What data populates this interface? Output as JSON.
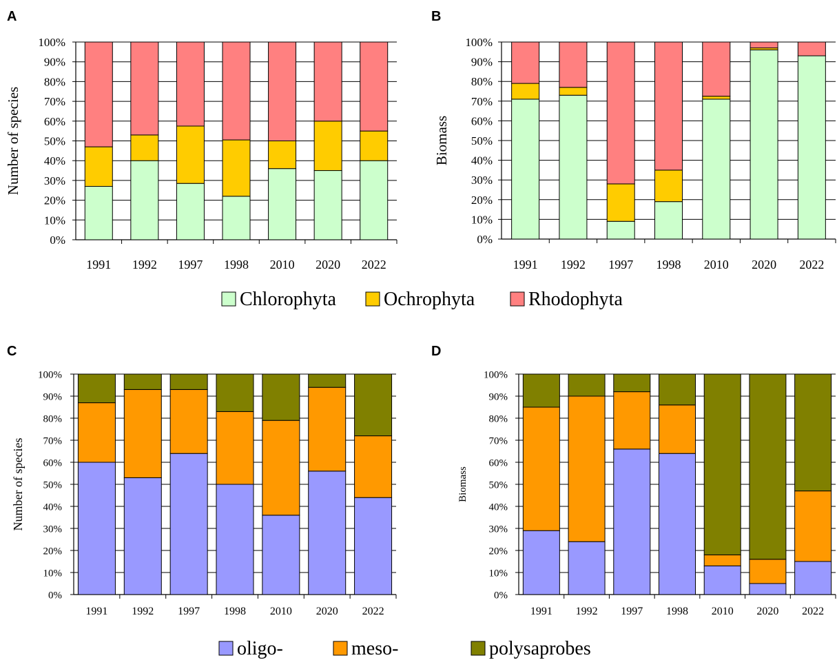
{
  "legend_top": {
    "items": [
      {
        "label": "Chlorophyta",
        "color": "#ccffcc"
      },
      {
        "label": "Ochrophyta",
        "color": "#ffcc00"
      },
      {
        "label": "Rhodophyta",
        "color": "#ff8080"
      }
    ]
  },
  "legend_bottom": {
    "items": [
      {
        "label": "oligo-",
        "color": "#9999ff"
      },
      {
        "label": "meso-",
        "color": "#ff9900"
      },
      {
        "label": "polysaprobes",
        "color": "#808000"
      }
    ]
  },
  "chart_data": [
    {
      "panel": "A",
      "type": "bar",
      "stacked": true,
      "ylabel": "Number of species",
      "ylim": [
        0,
        100
      ],
      "yticks": [
        "0%",
        "10%",
        "20%",
        "30%",
        "40%",
        "50%",
        "60%",
        "70%",
        "80%",
        "90%",
        "100%"
      ],
      "grid": true,
      "categories": [
        "1991",
        "1992",
        "1997",
        "1998",
        "2010",
        "2020",
        "2022"
      ],
      "series": [
        {
          "name": "Chlorophyta",
          "color": "#ccffcc",
          "values": [
            27,
            40,
            28.5,
            22,
            36,
            35,
            40
          ]
        },
        {
          "name": "Ochrophyta",
          "color": "#ffcc00",
          "values": [
            20,
            13,
            29,
            28.5,
            14,
            25,
            15
          ]
        },
        {
          "name": "Rhodophyta",
          "color": "#ff8080",
          "values": [
            53,
            47,
            42.5,
            49.5,
            50,
            40,
            45
          ]
        }
      ]
    },
    {
      "panel": "B",
      "type": "bar",
      "stacked": true,
      "ylabel": "Biomass",
      "ylim": [
        0,
        100
      ],
      "yticks": [
        "0%",
        "10%",
        "20%",
        "30%",
        "40%",
        "50%",
        "60%",
        "70%",
        "80%",
        "90%",
        "100%"
      ],
      "grid": true,
      "categories": [
        "1991",
        "1992",
        "1997",
        "1998",
        "2010",
        "2020",
        "2022"
      ],
      "series": [
        {
          "name": "Chlorophyta",
          "color": "#ccffcc",
          "values": [
            71,
            73,
            9,
            19,
            71,
            96,
            93
          ]
        },
        {
          "name": "Ochrophyta",
          "color": "#ffcc00",
          "values": [
            8,
            4,
            19,
            16,
            1.5,
            1,
            0
          ]
        },
        {
          "name": "Rhodophyta",
          "color": "#ff8080",
          "values": [
            21,
            23,
            72,
            65,
            27.5,
            3,
            7
          ]
        }
      ]
    },
    {
      "panel": "C",
      "type": "bar",
      "stacked": true,
      "ylabel": "Number of species",
      "ylim": [
        0,
        100
      ],
      "yticks": [
        "0%",
        "10%",
        "20%",
        "30%",
        "40%",
        "50%",
        "60%",
        "70%",
        "80%",
        "90%",
        "100%"
      ],
      "grid": true,
      "categories": [
        "1991",
        "1992",
        "1997",
        "1998",
        "2010",
        "2020",
        "2022"
      ],
      "series": [
        {
          "name": "oligo-",
          "color": "#9999ff",
          "values": [
            60,
            53,
            64,
            50,
            36,
            56,
            44
          ]
        },
        {
          "name": "meso-",
          "color": "#ff9900",
          "values": [
            27,
            40,
            29,
            33,
            43,
            38,
            28
          ]
        },
        {
          "name": "polysaprobes",
          "color": "#808000",
          "values": [
            13,
            7,
            7,
            17,
            21,
            6,
            28
          ]
        }
      ]
    },
    {
      "panel": "D",
      "type": "bar",
      "stacked": true,
      "ylabel": "Biomass",
      "ylim": [
        0,
        100
      ],
      "yticks": [
        "0%",
        "10%",
        "20%",
        "30%",
        "40%",
        "50%",
        "60%",
        "70%",
        "80%",
        "90%",
        "100%"
      ],
      "grid": true,
      "categories": [
        "1991",
        "1992",
        "1997",
        "1998",
        "2010",
        "2020",
        "2022"
      ],
      "series": [
        {
          "name": "oligo-",
          "color": "#9999ff",
          "values": [
            29,
            24,
            66,
            64,
            13,
            5,
            15
          ]
        },
        {
          "name": "meso-",
          "color": "#ff9900",
          "values": [
            56,
            66,
            26,
            22,
            5,
            11,
            32
          ]
        },
        {
          "name": "polysaprobes",
          "color": "#808000",
          "values": [
            15,
            10,
            8,
            14,
            82,
            84,
            53
          ]
        }
      ]
    }
  ]
}
